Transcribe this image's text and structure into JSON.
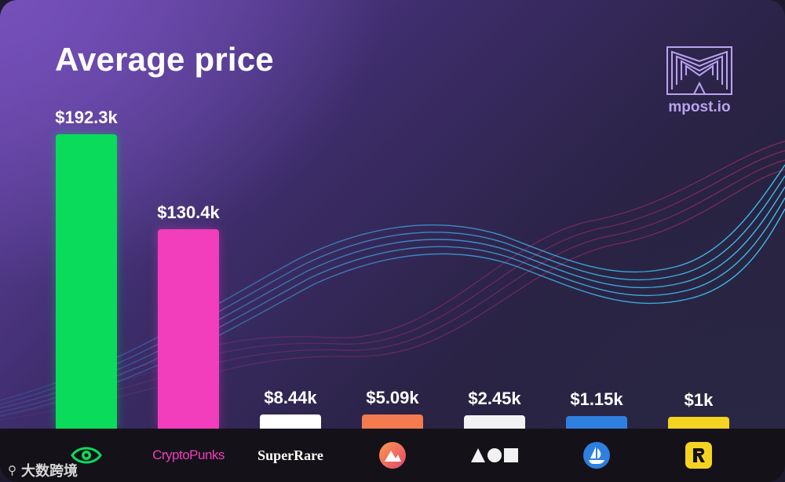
{
  "header": {
    "title": "Average price",
    "brand": "mpost.io",
    "brand_logo_icon": "mpost-logo-icon"
  },
  "colors": {
    "opensea_eye": "#0adb5b",
    "cryptopunks": "#f23dbd",
    "superrare": "#ffffff",
    "rarible_orange": "#f47a4f",
    "foundation": "#f2f2f2",
    "opensea_blue": "#2f7fe0",
    "rarible_yellow": "#f5d322"
  },
  "chart_data": {
    "type": "bar",
    "title": "Average price",
    "categories": [
      "Eye logo platform",
      "CryptoPunks",
      "SuperRare",
      "Rarible-style logo",
      "Foundation",
      "OpenSea",
      "R logo platform"
    ],
    "values": [
      192.3,
      130.4,
      8.44,
      5.09,
      2.45,
      1.15,
      1
    ],
    "value_labels": [
      "$192.3k",
      "$130.4k",
      "$8.44k",
      "$5.09k",
      "$2.45k",
      "$1.15k",
      "$1k"
    ],
    "units": "thousand USD",
    "bar_colors": [
      "#0adb5b",
      "#f23dbd",
      "#ffffff",
      "#f47a4f",
      "#f2f2f2",
      "#2f7fe0",
      "#f5d322"
    ],
    "ylim": [
      0,
      192.3
    ],
    "grid": false
  },
  "platforms": [
    {
      "kind": "icon",
      "icon": "eye-icon"
    },
    {
      "kind": "text",
      "label": "CryptoPunks",
      "style": "cp"
    },
    {
      "kind": "text",
      "label": "SuperRare",
      "style": "sr"
    },
    {
      "kind": "icon",
      "icon": "mountain-circle-icon"
    },
    {
      "kind": "icon",
      "icon": "triangle-circle-square-icon"
    },
    {
      "kind": "icon",
      "icon": "sailboat-circle-icon"
    },
    {
      "kind": "icon",
      "icon": "r-square-icon"
    }
  ],
  "watermark": {
    "icon": "watermark-logo-icon",
    "text": "大数跨境"
  }
}
